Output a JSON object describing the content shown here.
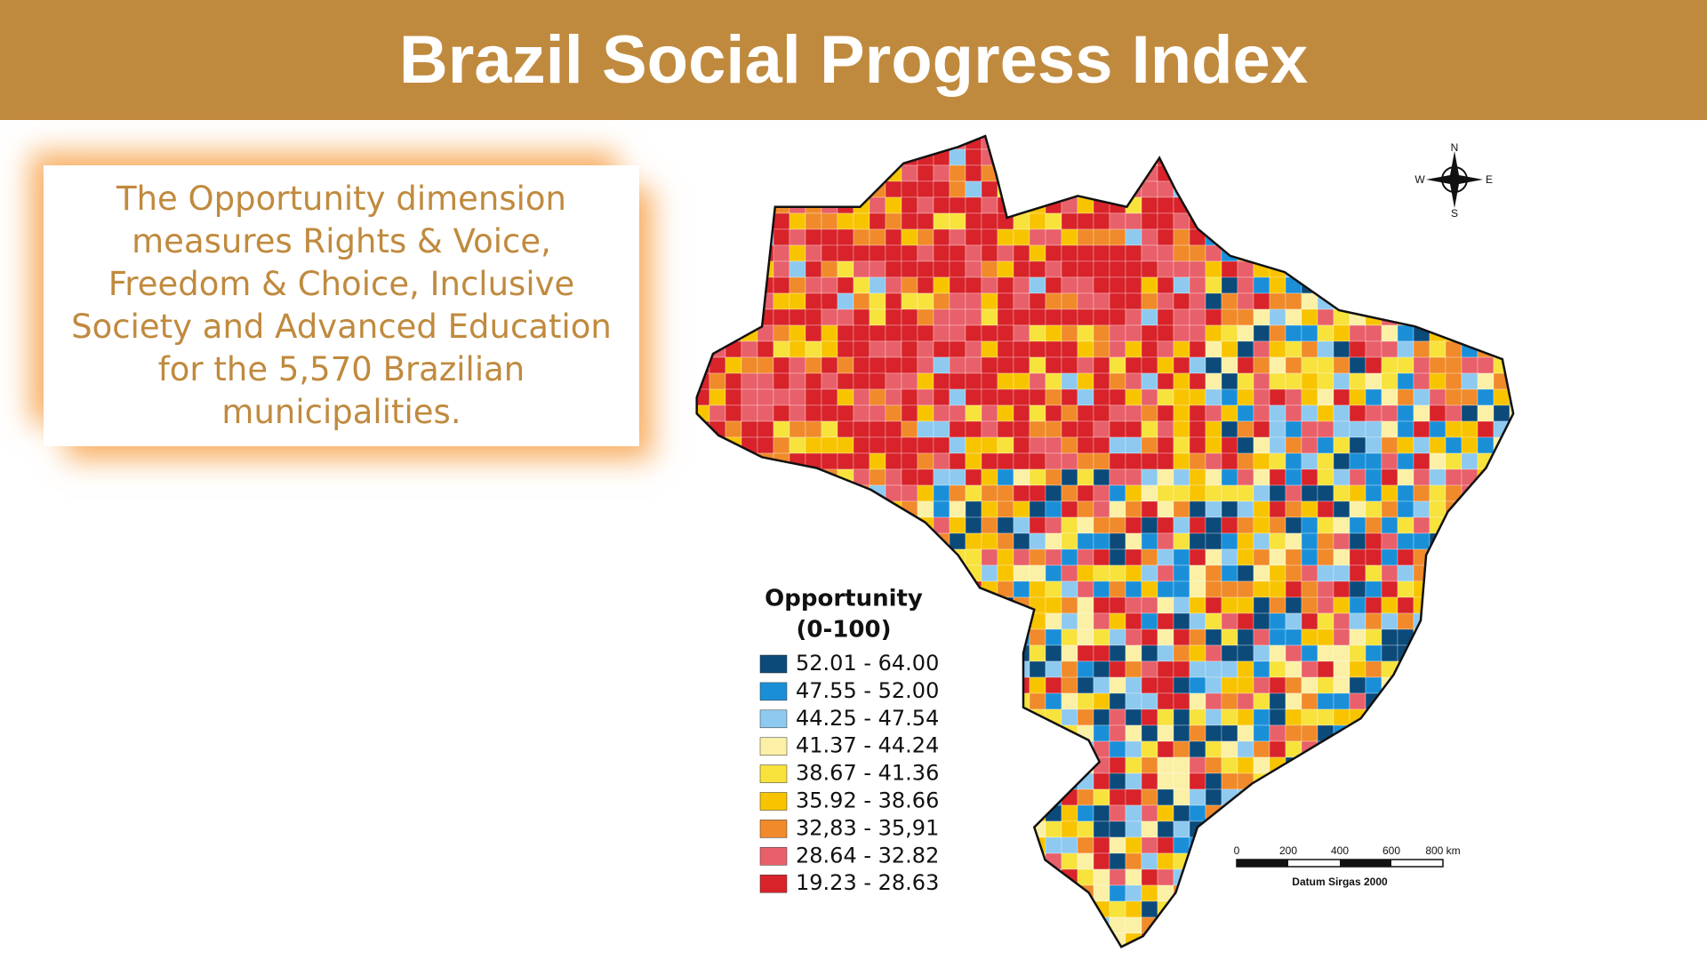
{
  "header": {
    "title": "Brazil Social Progress Index"
  },
  "description": "The Opportunity dimension measures Rights & Voice, Freedom & Choice, Inclusive Society and Advanced Education for the 5,570 Brazilian municipalities.",
  "legend": {
    "title": "Opportunity",
    "subtitle": "(0-100)",
    "items": [
      {
        "label": "52.01 - 64.00",
        "color": "#0c4a7a"
      },
      {
        "label": "47.55 - 52.00",
        "color": "#1a8fd8"
      },
      {
        "label": "44.25 - 47.54",
        "color": "#8ec9ef"
      },
      {
        "label": "41.37 - 44.24",
        "color": "#fbf0a6"
      },
      {
        "label": "38.67 - 41.36",
        "color": "#f8e23c"
      },
      {
        "label": "35.92 - 38.66",
        "color": "#f8c400"
      },
      {
        "label": "32,83 - 35,91",
        "color": "#f08a2a"
      },
      {
        "label": "28.64 - 32.82",
        "color": "#e8606a"
      },
      {
        "label": "19.23 - 28.63",
        "color": "#d8232a"
      }
    ]
  },
  "compass": {
    "n": "N",
    "s": "S",
    "e": "E",
    "w": "W"
  },
  "scale_bar": {
    "ticks": [
      "0",
      "200",
      "400",
      "600",
      "800 km"
    ],
    "caption": "Datum Sirgas 2000"
  }
}
